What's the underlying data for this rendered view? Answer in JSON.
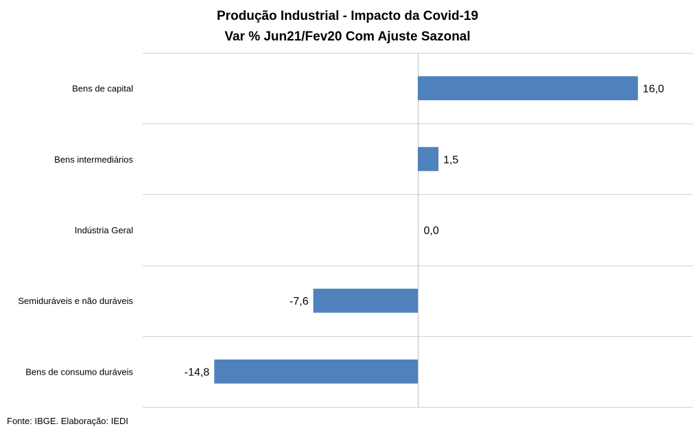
{
  "chart_data": {
    "type": "bar",
    "orientation": "horizontal",
    "title": "Produção Industrial - Impacto da Covid-19",
    "subtitle": "Var % Jun21/Fev20 Com Ajuste Sazonal",
    "categories": [
      "Bens de capital",
      "Bens intermediários",
      "Indústria Geral",
      "Semiduráveis e não duráveis",
      "Bens de consumo duráveis"
    ],
    "values": [
      16.0,
      1.5,
      0.0,
      -7.6,
      -14.8
    ],
    "data_labels": [
      "16,0",
      "1,5",
      "0,0",
      "-7,6",
      "-14,8"
    ],
    "xlim": [
      -20,
      20
    ],
    "grid": "horizontal lines between categories",
    "bar_color": "#4f81bd"
  },
  "source": "Fonte: IBGE. Elaboração: IEDI"
}
